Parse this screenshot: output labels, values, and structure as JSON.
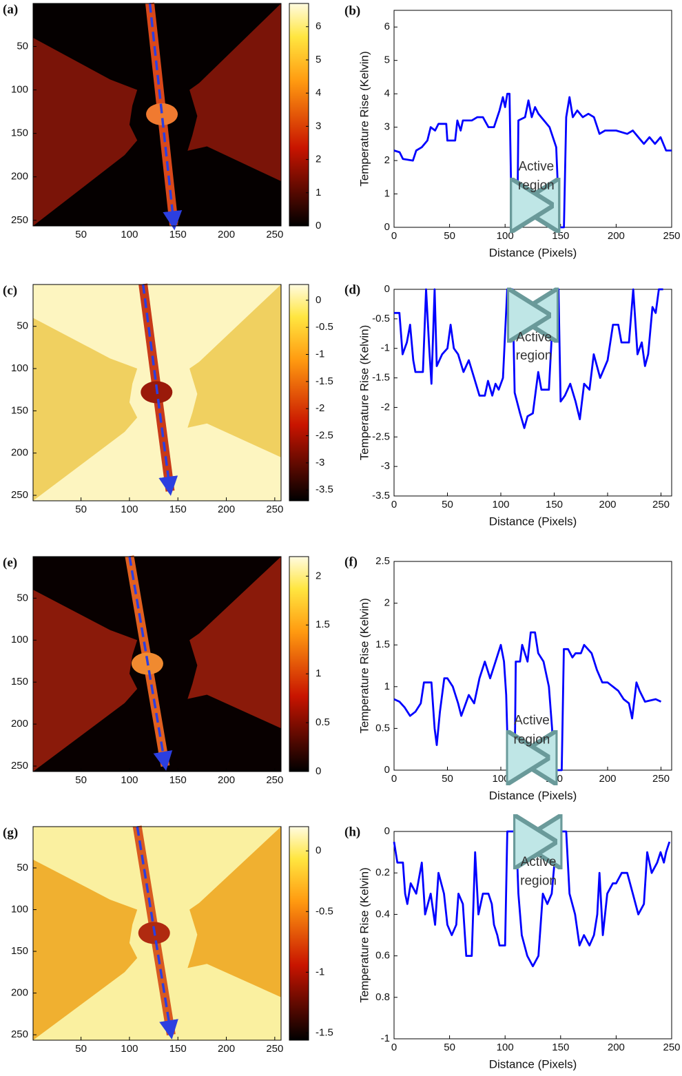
{
  "chart_data": [
    {
      "type": "heatmap",
      "panel_label": "(a)",
      "xlim": [
        0.5,
        256.5
      ],
      "ylim": [
        256.5,
        0.5
      ],
      "xticks": [
        50,
        100,
        150,
        200,
        250
      ],
      "yticks": [
        50,
        100,
        150,
        200,
        250
      ],
      "colorbar": {
        "lim": [
          0,
          6.7
        ],
        "ticks": [
          0,
          1,
          2,
          3,
          4,
          5,
          6
        ]
      },
      "colors": {
        "background": "#050000",
        "pads": "#7a1408",
        "strip": "#d9481a",
        "center": "#f07a30",
        "arrow": "#2c3fe0"
      }
    },
    {
      "type": "line",
      "panel_label": "(b)",
      "xlabel": "Distance (Pixels)",
      "ylabel": "Temperature Rise (Kelvin)",
      "annotation": [
        "Active",
        "region"
      ],
      "color": "#0000ff",
      "xlim": [
        0,
        250
      ],
      "ylim": [
        0,
        6.5
      ],
      "xticks": [
        0,
        50,
        100,
        150,
        200,
        250
      ],
      "yticks": [
        0,
        1,
        2,
        3,
        4,
        5,
        6
      ],
      "x": [
        0,
        5,
        8,
        17,
        20,
        25,
        30,
        33,
        37,
        40,
        47,
        48,
        55,
        57,
        60,
        62,
        70,
        75,
        80,
        85,
        90,
        95,
        98,
        100,
        102,
        104,
        106,
        111,
        112,
        118,
        121,
        124,
        127,
        130,
        140,
        146,
        149,
        153,
        155,
        158,
        161,
        165,
        170,
        175,
        180,
        185,
        190,
        200,
        210,
        215,
        220,
        225,
        230,
        235,
        240,
        245,
        250
      ],
      "values": [
        2.3,
        2.25,
        2.05,
        2.0,
        2.3,
        2.4,
        2.6,
        3.0,
        2.9,
        3.1,
        3.1,
        2.6,
        2.6,
        3.2,
        2.9,
        3.2,
        3.2,
        3.3,
        3.3,
        3.0,
        3.0,
        3.5,
        3.9,
        3.6,
        4.0,
        4.0,
        0,
        0,
        3.2,
        3.3,
        3.8,
        3.3,
        3.6,
        3.4,
        3.0,
        2.4,
        0,
        0,
        3.3,
        3.9,
        3.3,
        3.5,
        3.3,
        3.4,
        3.3,
        2.8,
        2.9,
        2.9,
        2.8,
        2.9,
        2.7,
        2.5,
        2.7,
        2.5,
        2.7,
        2.3,
        2.3
      ]
    },
    {
      "type": "heatmap",
      "panel_label": "(c)",
      "xlim": [
        0.5,
        256.5
      ],
      "ylim": [
        256.5,
        0.5
      ],
      "xticks": [
        50,
        100,
        150,
        200,
        250
      ],
      "yticks": [
        50,
        100,
        150,
        200,
        250
      ],
      "colorbar": {
        "lim": [
          -3.7,
          0.29
        ],
        "ticks": [
          0,
          -0.5,
          -1,
          -1.5,
          -2,
          -2.5,
          -3,
          -3.5
        ]
      },
      "colors": {
        "background": "#fdf5c0",
        "pads": "#f0d060",
        "strip": "#c83a18",
        "center": "#9a1a0a",
        "arrow": "#2c3fe0"
      }
    },
    {
      "type": "line",
      "panel_label": "(d)",
      "xlabel": "Distance (Pixels)",
      "ylabel": "Temperature Rise (Kelvin)",
      "annotation": [
        "Active",
        "region"
      ],
      "color": "#0000ff",
      "xlim": [
        0,
        260
      ],
      "ylim": [
        -3.5,
        0
      ],
      "xticks": [
        0,
        50,
        100,
        150,
        200,
        250
      ],
      "yticks": [
        0,
        -0.5,
        -1,
        -1.5,
        -2,
        -2.5,
        -3,
        -3.5
      ],
      "x": [
        0,
        5,
        8,
        12,
        15,
        18,
        20,
        27,
        30,
        33,
        35,
        38,
        40,
        45,
        50,
        53,
        56,
        60,
        65,
        70,
        75,
        80,
        85,
        88,
        92,
        95,
        98,
        102,
        106,
        111,
        113,
        118,
        122,
        125,
        130,
        135,
        138,
        145,
        150,
        154,
        156,
        160,
        165,
        170,
        174,
        178,
        183,
        187,
        193,
        200,
        205,
        210,
        213,
        220,
        224,
        228,
        232,
        235,
        238,
        242,
        245,
        248,
        252
      ],
      "values": [
        -0.4,
        -0.4,
        -1.1,
        -0.9,
        -0.6,
        -1.2,
        -1.4,
        -1.4,
        0,
        -1.0,
        -1.6,
        0,
        -1.3,
        -1.1,
        -1.0,
        -0.6,
        -1.0,
        -1.1,
        -1.4,
        -1.2,
        -1.5,
        -1.8,
        -1.8,
        -1.55,
        -1.8,
        -1.6,
        -1.7,
        -1.5,
        0,
        0,
        -1.75,
        -2.1,
        -2.35,
        -2.15,
        -2.1,
        -1.4,
        -1.7,
        -1.7,
        0,
        0,
        -1.9,
        -1.8,
        -1.6,
        -1.9,
        -2.2,
        -1.6,
        -1.7,
        -1.1,
        -1.5,
        -1.2,
        -0.6,
        -0.6,
        -0.9,
        -0.9,
        0,
        -1.1,
        -0.9,
        -1.3,
        -1.1,
        -0.3,
        -0.4,
        0,
        0
      ]
    },
    {
      "type": "heatmap",
      "panel_label": "(e)",
      "xlim": [
        0.5,
        256.5
      ],
      "ylim": [
        256.5,
        0.5
      ],
      "xticks": [
        50,
        100,
        150,
        200,
        250
      ],
      "yticks": [
        50,
        100,
        150,
        200,
        250
      ],
      "colorbar": {
        "lim": [
          0,
          2.2
        ],
        "ticks": [
          0,
          0.5,
          1,
          1.5,
          2
        ]
      },
      "colors": {
        "background": "#080000",
        "pads": "#8a1a0a",
        "strip": "#e06020",
        "center": "#f08a30",
        "arrow": "#2c3fe0"
      }
    },
    {
      "type": "line",
      "panel_label": "(f)",
      "xlabel": "Distance (Pixels)",
      "ylabel": "Temperature Rise (Kelvin)",
      "annotation": [
        "Active",
        "region"
      ],
      "color": "#0000ff",
      "xlim": [
        0,
        260
      ],
      "ylim": [
        0,
        2.5
      ],
      "xticks": [
        0,
        50,
        100,
        150,
        200,
        250
      ],
      "yticks": [
        0,
        0.5,
        1,
        1.5,
        2,
        2.5
      ],
      "x": [
        0,
        5,
        10,
        15,
        20,
        25,
        28,
        35,
        38,
        40,
        43,
        47,
        50,
        55,
        60,
        63,
        70,
        75,
        80,
        85,
        90,
        95,
        100,
        103,
        105,
        107,
        113,
        114,
        118,
        120,
        125,
        128,
        132,
        135,
        140,
        145,
        148,
        150,
        157,
        159,
        163,
        167,
        170,
        175,
        178,
        185,
        190,
        195,
        200,
        210,
        215,
        220,
        223,
        227,
        230,
        235,
        245,
        250
      ],
      "values": [
        0.85,
        0.82,
        0.75,
        0.65,
        0.7,
        0.8,
        1.05,
        1.05,
        0.5,
        0.3,
        0.7,
        1.1,
        1.1,
        1.0,
        0.8,
        0.65,
        0.9,
        0.8,
        1.1,
        1.3,
        1.1,
        1.3,
        1.5,
        1.3,
        0.9,
        0,
        0,
        1.3,
        1.3,
        1.5,
        1.3,
        1.65,
        1.65,
        1.4,
        1.3,
        1.0,
        0.5,
        0,
        0,
        1.45,
        1.45,
        1.35,
        1.4,
        1.4,
        1.5,
        1.4,
        1.2,
        1.05,
        1.05,
        0.95,
        0.85,
        0.8,
        0.62,
        1.05,
        0.95,
        0.82,
        0.85,
        0.82
      ]
    },
    {
      "type": "heatmap",
      "panel_label": "(g)",
      "xlim": [
        0.5,
        256.5
      ],
      "ylim": [
        256.5,
        0.5
      ],
      "xticks": [
        50,
        100,
        150,
        200,
        250
      ],
      "yticks": [
        50,
        100,
        150,
        200,
        250
      ],
      "colorbar": {
        "lim": [
          -1.56,
          0.2
        ],
        "ticks": [
          0,
          -0.5,
          -1,
          -1.5
        ]
      },
      "colors": {
        "background": "#faf0a0",
        "pads": "#f0b030",
        "strip": "#d85a20",
        "center": "#b02a10",
        "arrow": "#2c3fe0"
      }
    },
    {
      "type": "line",
      "panel_label": "(h)",
      "xlabel": "Distance (Pixels)",
      "ylabel": "Temperature Rise (Kelvin)",
      "annotation": [
        "Active",
        "region"
      ],
      "color": "#0000ff",
      "xlim": [
        0,
        250
      ],
      "ylim": [
        -1,
        0
      ],
      "xticks": [
        0,
        50,
        100,
        150,
        200,
        250
      ],
      "yticks": [
        0,
        {
          "value": -0.2,
          "label": "0.2"
        },
        {
          "value": -0.4,
          "label": "0.4"
        },
        {
          "value": -0.6,
          "label": "0.6"
        },
        {
          "value": -0.8,
          "label": "0.8"
        },
        -1
      ],
      "x": [
        0,
        3,
        8,
        10,
        12,
        15,
        20,
        25,
        28,
        33,
        37,
        40,
        45,
        48,
        52,
        56,
        58,
        62,
        65,
        70,
        73,
        76,
        80,
        85,
        88,
        90,
        93,
        95,
        100,
        102,
        110,
        112,
        115,
        120,
        125,
        130,
        134,
        138,
        142,
        147,
        155,
        158,
        163,
        167,
        171,
        176,
        180,
        183,
        185,
        188,
        192,
        197,
        200,
        205,
        210,
        215,
        220,
        225,
        228,
        232,
        237,
        240,
        243,
        245,
        248
      ],
      "values": [
        -0.05,
        -0.15,
        -0.15,
        -0.3,
        -0.35,
        -0.25,
        -0.3,
        -0.15,
        -0.4,
        -0.3,
        -0.45,
        -0.2,
        -0.3,
        -0.45,
        -0.5,
        -0.45,
        -0.3,
        -0.35,
        -0.6,
        -0.6,
        -0.1,
        -0.4,
        -0.3,
        -0.3,
        -0.35,
        -0.45,
        -0.5,
        -0.55,
        -0.55,
        0,
        0,
        -0.3,
        -0.5,
        -0.6,
        -0.65,
        -0.6,
        -0.3,
        -0.35,
        -0.3,
        0,
        0,
        -0.3,
        -0.4,
        -0.55,
        -0.5,
        -0.55,
        -0.5,
        -0.4,
        -0.2,
        -0.5,
        -0.3,
        -0.25,
        -0.25,
        -0.2,
        -0.2,
        -0.3,
        -0.4,
        -0.35,
        -0.1,
        -0.2,
        -0.15,
        -0.1,
        -0.15,
        -0.1,
        -0.05
      ]
    }
  ]
}
